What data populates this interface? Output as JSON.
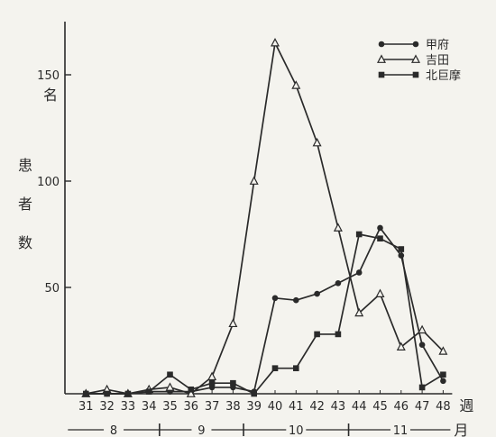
{
  "chart_data": {
    "type": "line",
    "ylabel": "患者数",
    "y_unit": "名",
    "x_unit": "週",
    "month_unit": "月",
    "ylim": [
      0,
      175
    ],
    "yticks": [
      50,
      100,
      150
    ],
    "x": [
      31,
      32,
      33,
      34,
      35,
      36,
      37,
      38,
      39,
      40,
      41,
      42,
      43,
      44,
      45,
      46,
      47,
      48
    ],
    "months": [
      {
        "label": "8",
        "from": 31,
        "to": 34
      },
      {
        "label": "9",
        "from": 35,
        "to": 38
      },
      {
        "label": "10",
        "from": 39,
        "to": 43
      },
      {
        "label": "11",
        "from": 44,
        "to": 48
      }
    ],
    "legend_position": "top-right",
    "series": [
      {
        "name": "甲府",
        "marker": "circle",
        "values": [
          0,
          0,
          0,
          1,
          1,
          1,
          3,
          3,
          1,
          45,
          44,
          47,
          52,
          57,
          78,
          65,
          23,
          6
        ]
      },
      {
        "name": "吉田",
        "marker": "triangle",
        "values": [
          0,
          2,
          0,
          2,
          3,
          0,
          8,
          33,
          100,
          165,
          145,
          118,
          78,
          38,
          47,
          22,
          30,
          20
        ]
      },
      {
        "name": "北巨摩",
        "marker": "square",
        "values": [
          0,
          0,
          0,
          1,
          9,
          2,
          5,
          5,
          0,
          12,
          12,
          28,
          28,
          75,
          73,
          68,
          3,
          9
        ]
      }
    ]
  }
}
